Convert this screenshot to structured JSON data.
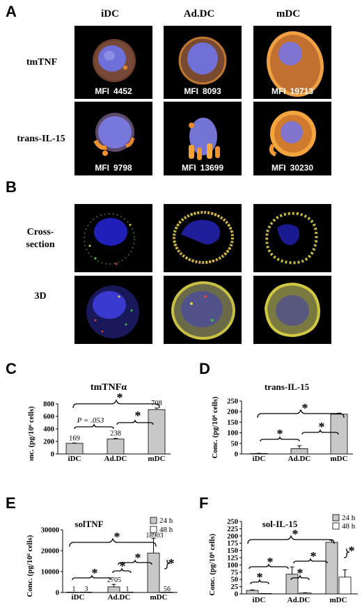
{
  "panel_a": {
    "letter": "A",
    "columns": [
      "iDC",
      "Ad.DC",
      "mDC"
    ],
    "rows": [
      {
        "label": "tmTNF",
        "cells": [
          {
            "mfi_label": "MFI",
            "mfi_value": "4452"
          },
          {
            "mfi_label": "MFI",
            "mfi_value": "8093"
          },
          {
            "mfi_label": "MFI",
            "mfi_value": "19713"
          }
        ]
      },
      {
        "label": "trans-IL-15",
        "cells": [
          {
            "mfi_label": "MFI",
            "mfi_value": "9798"
          },
          {
            "mfi_label": "MFI",
            "mfi_value": "13699"
          },
          {
            "mfi_label": "MFI",
            "mfi_value": "30230"
          }
        ]
      }
    ]
  },
  "panel_b": {
    "letter": "B",
    "rows": [
      {
        "label_line1": "Cross-",
        "label_line2": "section"
      },
      {
        "label_line1": "3D",
        "label_line2": ""
      }
    ]
  },
  "panel_c": {
    "letter": "C"
  },
  "panel_d": {
    "letter": "D"
  },
  "panel_e": {
    "letter": "E"
  },
  "panel_f": {
    "letter": "F"
  },
  "colors": {
    "bar_gray": "#c8c8c8",
    "bar_white": "#ffffff",
    "nucleus_blue": "#3a3ad8",
    "surface_orange": "#e88a2a"
  },
  "chart_data": [
    {
      "panel": "C",
      "type": "bar",
      "title": "tmTNFα",
      "ylabel": "Conc. (pg/10⁶ cells)",
      "categories": [
        "iDC",
        "Ad.DC",
        "mDC"
      ],
      "series": [
        {
          "values": [
            169,
            238,
            708
          ],
          "errors": [
            6,
            10,
            25
          ]
        }
      ],
      "data_labels": [
        "169",
        "238",
        "708"
      ],
      "ylim": [
        0,
        800
      ],
      "yticks": [
        0,
        200,
        400,
        600,
        800
      ],
      "annotations": [
        {
          "text": "*",
          "between": [
            "iDC",
            "mDC"
          ]
        },
        {
          "text": "P = .053",
          "between": [
            "iDC",
            "Ad.DC"
          ]
        },
        {
          "text": "*",
          "between": [
            "Ad.DC",
            "mDC"
          ]
        }
      ]
    },
    {
      "panel": "D",
      "type": "bar",
      "title": "trans-IL-15",
      "ylabel": "Conc. (pg/10⁶ cells)",
      "categories": [
        "iDC",
        "Ad.DC",
        "mDC"
      ],
      "series": [
        {
          "values": [
            2,
            25,
            188
          ],
          "errors": [
            1,
            14,
            5
          ]
        }
      ],
      "ylim": [
        0,
        250
      ],
      "yticks": [
        0,
        50,
        100,
        150,
        200,
        250
      ],
      "annotations": [
        {
          "text": "*",
          "between": [
            "iDC",
            "mDC"
          ]
        },
        {
          "text": "*",
          "between": [
            "iDC",
            "Ad.DC"
          ]
        },
        {
          "text": "*",
          "between": [
            "Ad.DC",
            "mDC"
          ]
        }
      ]
    },
    {
      "panel": "E",
      "type": "bar",
      "title": "solTNF",
      "ylabel": "Conc. (pg/10⁶ cells)",
      "categories": [
        "iDC",
        "Ad.DC",
        "mDC"
      ],
      "series": [
        {
          "name": "24 h",
          "values": [
            1,
            2705,
            18903
          ],
          "errors": [
            0,
            1200,
            7000
          ]
        },
        {
          "name": "48 h",
          "values": [
            3,
            1,
            56
          ],
          "errors": [
            0,
            0,
            0
          ]
        }
      ],
      "data_labels_24h": [
        "1",
        "2705",
        "18903"
      ],
      "data_labels_48h": [
        "3",
        "1",
        "56"
      ],
      "ylim": [
        0,
        30000
      ],
      "yticks": [
        0,
        10000,
        20000,
        30000
      ],
      "legend": "top-right",
      "annotations": [
        {
          "text": "*",
          "between": [
            "iDC",
            "mDC"
          ]
        },
        {
          "text": "*",
          "between": [
            "iDC",
            "Ad.DC"
          ]
        },
        {
          "text": "*",
          "between": [
            "Ad.DC 24 h",
            "Ad.DC 48 h"
          ]
        },
        {
          "text": "*",
          "between": [
            "Ad.DC",
            "mDC"
          ]
        },
        {
          "text": "*",
          "between": [
            "mDC 24 h",
            "mDC 48 h"
          ]
        }
      ]
    },
    {
      "panel": "F",
      "type": "bar",
      "title": "sol-IL-15",
      "ylabel": "Conc. (pg/10⁶ cells)",
      "categories": [
        "iDC",
        "Ad.DC",
        "mDC"
      ],
      "series": [
        {
          "name": "24 h",
          "values": [
            12,
            68,
            178
          ],
          "errors": [
            2,
            25,
            7
          ]
        },
        {
          "name": "48 h",
          "values": [
            1,
            3,
            58
          ],
          "errors": [
            0,
            1,
            25
          ]
        }
      ],
      "ylim": [
        0,
        250
      ],
      "yticks": [
        0,
        25,
        50,
        75,
        100,
        125,
        150,
        175,
        200,
        225,
        250
      ],
      "legend": "top-right",
      "annotations": [
        {
          "text": "*",
          "between": [
            "iDC",
            "mDC"
          ]
        },
        {
          "text": "*",
          "between": [
            "iDC",
            "Ad.DC"
          ]
        },
        {
          "text": "*",
          "between": [
            "iDC 24 h",
            "iDC 48 h"
          ]
        },
        {
          "text": "*",
          "between": [
            "Ad.DC",
            "mDC"
          ]
        },
        {
          "text": "*",
          "between": [
            "Ad.DC 24 h",
            "Ad.DC 48 h"
          ]
        },
        {
          "text": "*",
          "between": [
            "mDC 24 h",
            "mDC 48 h"
          ]
        }
      ]
    }
  ]
}
